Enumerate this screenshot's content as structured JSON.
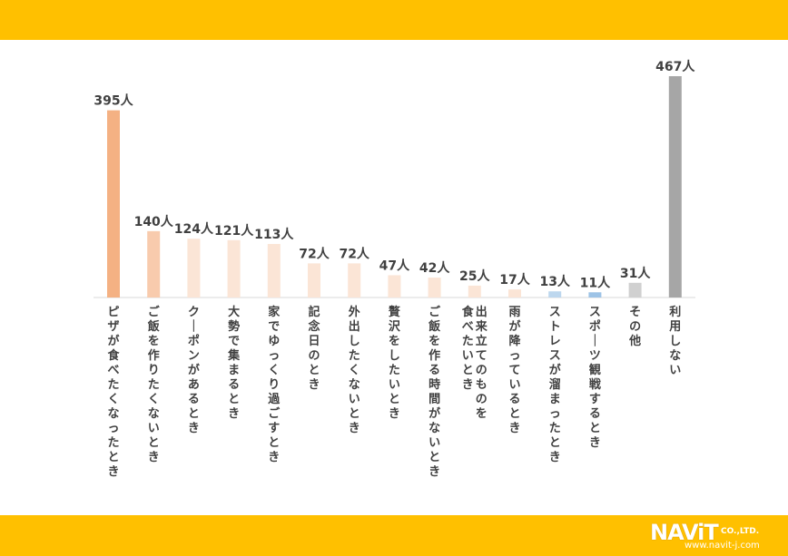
{
  "chart_data": {
    "type": "bar",
    "title": "",
    "xlabel": "",
    "ylabel": "",
    "ylim": [
      0,
      467
    ],
    "grid": false,
    "categories": [
      "ピザが食べたくなったとき",
      "ご飯を作りたくないとき",
      "クーポンがあるとき",
      "大勢で集まるとき",
      "家でゆっくり過ごすとき",
      "記念日のとき",
      "外出したくないとき",
      "贅沢をしたいとき",
      "ご飯を作る時間がないとき",
      [
        "出来立てのものを",
        "食べたいとき"
      ],
      "雨が降っているとき",
      "ストレスが溜まったとき",
      "スポーツ観戦するとき",
      "その他",
      "利用しない"
    ],
    "values": [
      395,
      140,
      124,
      121,
      113,
      72,
      72,
      47,
      42,
      25,
      17,
      13,
      11,
      31,
      467
    ],
    "value_labels": [
      "395人",
      "140人",
      "124人",
      "121人",
      "113人",
      "72人",
      "72人",
      "47人",
      "42人",
      "25人",
      "17人",
      "13人",
      "11人",
      "31人",
      "467人"
    ],
    "colors": [
      "#F4B183",
      "#F8CBAD",
      "#FBE5D6",
      "#FBE5D6",
      "#FBE5D6",
      "#FBE5D6",
      "#FBE5D6",
      "#FBE5D6",
      "#FBE5D6",
      "#FBE5D6",
      "#FBE5D6",
      "#BDD7EE",
      "#9DC3E6",
      "#D0D0D0",
      "#A6A6A6"
    ]
  },
  "footer": {
    "logo_text": "NAViT",
    "logo_sub": "CO.,LTD.",
    "logo_url": "www.navit-j.com"
  }
}
